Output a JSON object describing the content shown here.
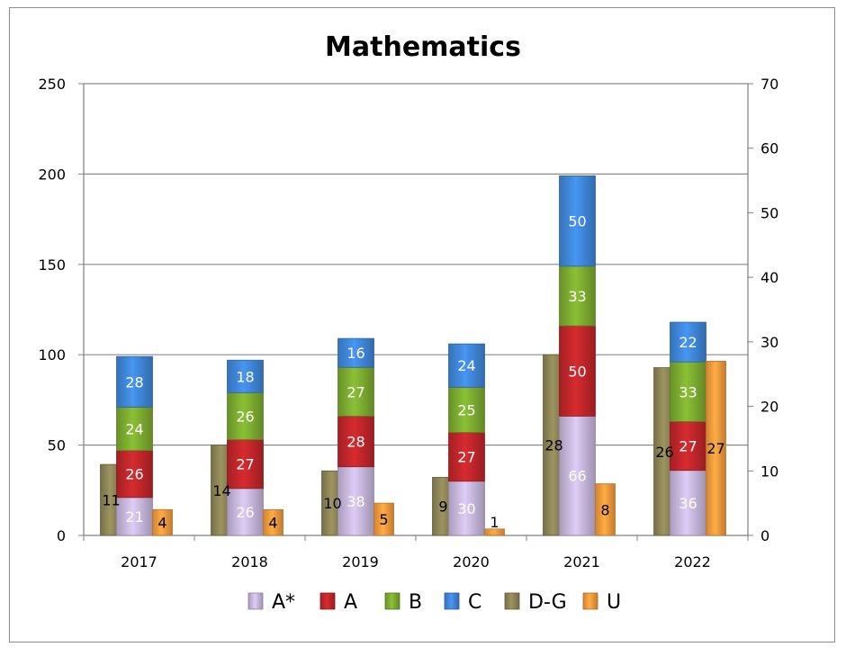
{
  "chart_data": {
    "type": "bar",
    "title": "Mathematics",
    "categories": [
      "2017",
      "2018",
      "2019",
      "2020",
      "2021",
      "2022"
    ],
    "left_axis": {
      "ylim": [
        0,
        250
      ],
      "ticks": [
        0,
        50,
        100,
        150,
        200,
        250
      ]
    },
    "right_axis": {
      "ylim": [
        0,
        70
      ],
      "ticks": [
        0,
        10,
        20,
        30,
        40,
        50,
        60,
        70
      ]
    },
    "stacked_group": [
      "A*",
      "A",
      "B",
      "C"
    ],
    "series": [
      {
        "name": "A*",
        "values": [
          21,
          26,
          38,
          30,
          66,
          36
        ],
        "color": "#c6b6dc",
        "axis": "left",
        "group": "stack"
      },
      {
        "name": "A",
        "values": [
          26,
          27,
          28,
          27,
          50,
          27
        ],
        "color": "#c0262a",
        "axis": "left",
        "group": "stack"
      },
      {
        "name": "B",
        "values": [
          24,
          26,
          27,
          25,
          33,
          33
        ],
        "color": "#7cab2f",
        "axis": "left",
        "group": "stack"
      },
      {
        "name": "C",
        "values": [
          28,
          18,
          16,
          24,
          50,
          22
        ],
        "color": "#3f86d8",
        "axis": "left",
        "group": "stack"
      },
      {
        "name": "D-G",
        "values": [
          11,
          14,
          10,
          9,
          28,
          26
        ],
        "color": "#8c8456",
        "axis": "right",
        "group": "left-side"
      },
      {
        "name": "U",
        "values": [
          4,
          4,
          5,
          1,
          8,
          27
        ],
        "color": "#f59a3c",
        "axis": "right",
        "group": "right-side"
      }
    ],
    "legend": {
      "position": "bottom",
      "entries": [
        "A*",
        "A",
        "B",
        "C",
        "D-G",
        "U"
      ]
    },
    "grid": true
  }
}
